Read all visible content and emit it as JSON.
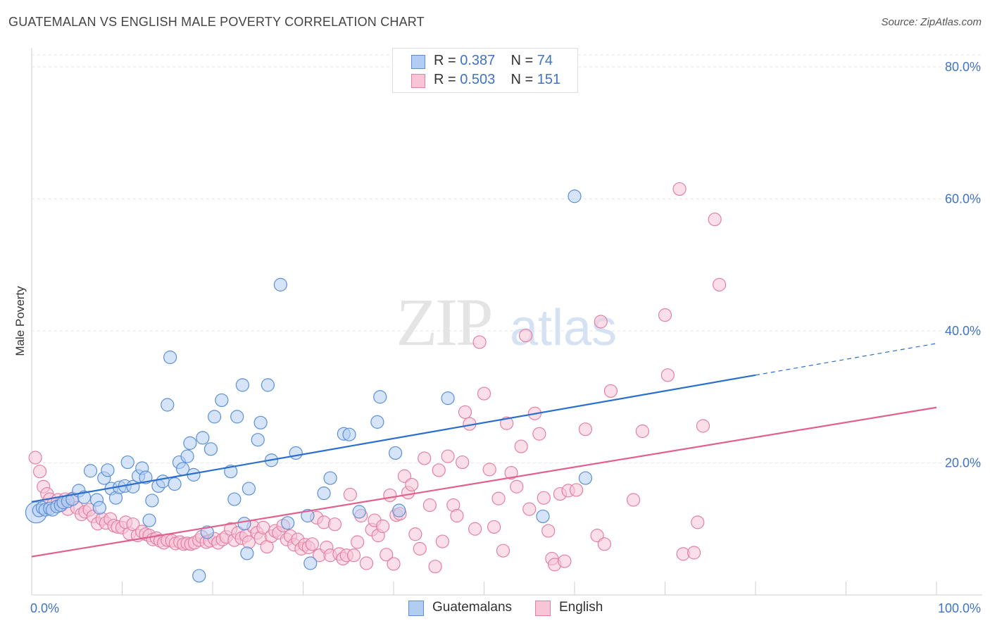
{
  "title": "GUATEMALAN VS ENGLISH MALE POVERTY CORRELATION CHART",
  "source": "Source: ZipAtlas.com",
  "watermark": {
    "zip": "ZIP",
    "atlas": "atlas"
  },
  "legend": {
    "rows": [
      {
        "r_label": "R =",
        "r_value": "0.387",
        "n_label": "N =",
        "n_value": "74"
      },
      {
        "r_label": "R =",
        "r_value": "0.503",
        "n_label": "N =",
        "n_value": "151"
      }
    ]
  },
  "bottom_legend": [
    "Guatemalans",
    "English"
  ],
  "colors": {
    "blue_fill": "#b3cdf2",
    "blue_stroke": "#5b8fd6",
    "blue_line": "#2a6fcc",
    "pink_fill": "#f8c5d6",
    "pink_stroke": "#e47fa4",
    "pink_line": "#e0608e",
    "tick": "#3f73c4",
    "grid": "#e6e6e6"
  },
  "chart_data": {
    "type": "scatter",
    "title": "GUATEMALAN VS ENGLISH MALE POVERTY CORRELATION CHART",
    "xlabel": "",
    "ylabel": "Male Poverty",
    "xlim": [
      0,
      100
    ],
    "ylim": [
      0,
      80
    ],
    "x_tick_labels": [
      "0.0%",
      "100.0%"
    ],
    "y_ticks": [
      20,
      40,
      60,
      80
    ],
    "y_tick_labels": [
      "20.0%",
      "40.0%",
      "60.0%",
      "80.0%"
    ],
    "grid": "horizontal-dashed",
    "series": [
      {
        "name": "Guatemalans",
        "R": 0.387,
        "N": 74,
        "trend": {
          "x0": 0,
          "y0": 14.1,
          "x1": 80,
          "y1": 33.3,
          "dashed_to_x": 100,
          "dashed_to_y": 38.1
        },
        "points": [
          [
            0.5,
            12.5
          ],
          [
            0.8,
            12.8
          ],
          [
            1.2,
            13.2
          ],
          [
            1.5,
            12.9
          ],
          [
            2.0,
            13.1
          ],
          [
            2.3,
            12.9
          ],
          [
            2.8,
            13.4
          ],
          [
            3.2,
            13.6
          ],
          [
            3.5,
            14.0
          ],
          [
            4.0,
            14.2
          ],
          [
            4.5,
            14.5
          ],
          [
            5.2,
            15.8
          ],
          [
            5.8,
            14.8
          ],
          [
            6.5,
            18.8
          ],
          [
            7.2,
            14.4
          ],
          [
            7.5,
            13.2
          ],
          [
            8.0,
            17.7
          ],
          [
            8.4,
            18.9
          ],
          [
            8.8,
            16.1
          ],
          [
            9.3,
            14.7
          ],
          [
            9.7,
            16.3
          ],
          [
            10.3,
            16.5
          ],
          [
            10.6,
            20.1
          ],
          [
            11.2,
            16.4
          ],
          [
            11.8,
            18.0
          ],
          [
            12.2,
            19.2
          ],
          [
            12.6,
            17.8
          ],
          [
            13.0,
            11.3
          ],
          [
            13.3,
            14.3
          ],
          [
            14.0,
            16.5
          ],
          [
            14.5,
            17.2
          ],
          [
            15.0,
            28.8
          ],
          [
            15.3,
            36.0
          ],
          [
            15.8,
            16.8
          ],
          [
            16.3,
            20.1
          ],
          [
            16.7,
            19.1
          ],
          [
            17.2,
            21.0
          ],
          [
            17.5,
            23.0
          ],
          [
            17.9,
            18.2
          ],
          [
            18.5,
            2.9
          ],
          [
            18.9,
            23.8
          ],
          [
            19.4,
            9.5
          ],
          [
            19.8,
            22.1
          ],
          [
            20.2,
            27.0
          ],
          [
            21.0,
            29.5
          ],
          [
            22.0,
            18.7
          ],
          [
            22.4,
            14.5
          ],
          [
            22.7,
            27.0
          ],
          [
            23.3,
            31.8
          ],
          [
            23.5,
            10.8
          ],
          [
            23.8,
            6.3
          ],
          [
            24.0,
            16.1
          ],
          [
            25.0,
            23.5
          ],
          [
            25.3,
            26.1
          ],
          [
            26.1,
            31.8
          ],
          [
            26.5,
            20.4
          ],
          [
            27.5,
            47.0
          ],
          [
            28.3,
            10.9
          ],
          [
            29.2,
            21.5
          ],
          [
            30.5,
            12.0
          ],
          [
            30.8,
            4.8
          ],
          [
            32.3,
            15.4
          ],
          [
            33.0,
            17.7
          ],
          [
            34.5,
            24.4
          ],
          [
            35.1,
            24.3
          ],
          [
            36.2,
            12.6
          ],
          [
            38.2,
            26.2
          ],
          [
            38.5,
            30.0
          ],
          [
            40.2,
            21.5
          ],
          [
            40.6,
            12.8
          ],
          [
            46.0,
            29.8
          ],
          [
            56.5,
            11.9
          ],
          [
            60.0,
            60.4
          ],
          [
            61.2,
            17.7
          ]
        ]
      },
      {
        "name": "English",
        "R": 0.503,
        "N": 151,
        "trend": {
          "x0": 0,
          "y0": 5.8,
          "x1": 100,
          "y1": 28.4
        },
        "points": [
          [
            0.4,
            20.8
          ],
          [
            0.9,
            18.7
          ],
          [
            1.3,
            16.4
          ],
          [
            1.7,
            15.3
          ],
          [
            2.0,
            14.5
          ],
          [
            2.4,
            13.8
          ],
          [
            2.9,
            14.4
          ],
          [
            3.3,
            13.6
          ],
          [
            3.7,
            14.5
          ],
          [
            4.0,
            13.0
          ],
          [
            4.5,
            14.6
          ],
          [
            5.0,
            13.2
          ],
          [
            5.5,
            12.2
          ],
          [
            5.9,
            12.6
          ],
          [
            6.4,
            12.9
          ],
          [
            6.8,
            11.9
          ],
          [
            7.3,
            10.8
          ],
          [
            7.8,
            11.5
          ],
          [
            8.2,
            10.9
          ],
          [
            8.7,
            11.5
          ],
          [
            9.1,
            10.5
          ],
          [
            9.5,
            10.3
          ],
          [
            10.0,
            10.2
          ],
          [
            10.4,
            11.0
          ],
          [
            10.8,
            9.3
          ],
          [
            11.2,
            10.7
          ],
          [
            11.7,
            9.0
          ],
          [
            12.2,
            9.6
          ],
          [
            12.6,
            9.2
          ],
          [
            13.0,
            9.0
          ],
          [
            13.4,
            8.4
          ],
          [
            13.8,
            8.6
          ],
          [
            14.2,
            8.2
          ],
          [
            14.6,
            7.9
          ],
          [
            15.0,
            8.3
          ],
          [
            15.5,
            8.2
          ],
          [
            15.9,
            7.8
          ],
          [
            16.4,
            8.0
          ],
          [
            16.8,
            7.7
          ],
          [
            17.2,
            7.8
          ],
          [
            17.6,
            7.7
          ],
          [
            18.0,
            7.9
          ],
          [
            18.5,
            8.3
          ],
          [
            18.8,
            8.8
          ],
          [
            19.3,
            8.0
          ],
          [
            19.7,
            8.2
          ],
          [
            20.2,
            8.5
          ],
          [
            20.6,
            7.9
          ],
          [
            21.1,
            8.4
          ],
          [
            21.5,
            8.8
          ],
          [
            22.0,
            10.0
          ],
          [
            22.4,
            8.3
          ],
          [
            22.8,
            9.4
          ],
          [
            23.2,
            8.6
          ],
          [
            23.7,
            9.0
          ],
          [
            24.0,
            8.0
          ],
          [
            24.5,
            10.3
          ],
          [
            24.9,
            9.4
          ],
          [
            25.3,
            8.6
          ],
          [
            25.6,
            10.2
          ],
          [
            26.0,
            7.3
          ],
          [
            26.5,
            8.9
          ],
          [
            26.9,
            9.7
          ],
          [
            27.3,
            9.4
          ],
          [
            27.8,
            10.5
          ],
          [
            28.2,
            8.4
          ],
          [
            28.6,
            8.9
          ],
          [
            29.0,
            7.6
          ],
          [
            29.4,
            8.4
          ],
          [
            29.8,
            7.0
          ],
          [
            30.2,
            7.6
          ],
          [
            30.6,
            7.2
          ],
          [
            31.0,
            7.7
          ],
          [
            31.5,
            11.7
          ],
          [
            31.8,
            6.0
          ],
          [
            32.3,
            11.0
          ],
          [
            32.6,
            7.2
          ],
          [
            33.0,
            6.0
          ],
          [
            33.5,
            10.7
          ],
          [
            34.0,
            6.2
          ],
          [
            34.4,
            5.5
          ],
          [
            34.8,
            6.0
          ],
          [
            35.2,
            15.2
          ],
          [
            35.6,
            6.0
          ],
          [
            36.0,
            8.0
          ],
          [
            36.4,
            12.0
          ],
          [
            37.0,
            4.8
          ],
          [
            37.6,
            9.9
          ],
          [
            37.9,
            11.3
          ],
          [
            38.3,
            9.0
          ],
          [
            38.8,
            10.4
          ],
          [
            39.2,
            6.1
          ],
          [
            39.6,
            15.1
          ],
          [
            40.0,
            4.7
          ],
          [
            40.3,
            12.1
          ],
          [
            40.7,
            12.3
          ],
          [
            41.2,
            18.0
          ],
          [
            41.6,
            15.5
          ],
          [
            42.0,
            16.7
          ],
          [
            42.4,
            9.2
          ],
          [
            42.9,
            7.0
          ],
          [
            43.4,
            20.7
          ],
          [
            44.0,
            13.6
          ],
          [
            44.6,
            4.3
          ],
          [
            45.0,
            18.9
          ],
          [
            45.4,
            8.1
          ],
          [
            46.0,
            21.0
          ],
          [
            46.6,
            13.6
          ],
          [
            47.0,
            12.0
          ],
          [
            47.6,
            20.1
          ],
          [
            47.9,
            27.7
          ],
          [
            48.4,
            25.9
          ],
          [
            49.0,
            10.0
          ],
          [
            49.5,
            38.3
          ],
          [
            50.0,
            30.5
          ],
          [
            50.6,
            19.0
          ],
          [
            51.1,
            10.3
          ],
          [
            51.6,
            14.6
          ],
          [
            52.1,
            6.7
          ],
          [
            52.5,
            26.0
          ],
          [
            53.0,
            18.5
          ],
          [
            53.6,
            16.4
          ],
          [
            54.1,
            22.5
          ],
          [
            54.6,
            39.3
          ],
          [
            55.0,
            13.0
          ],
          [
            55.6,
            27.5
          ],
          [
            56.1,
            24.4
          ],
          [
            56.6,
            14.7
          ],
          [
            57.1,
            9.7
          ],
          [
            57.5,
            5.5
          ],
          [
            57.8,
            4.6
          ],
          [
            58.4,
            15.3
          ],
          [
            58.9,
            5.1
          ],
          [
            59.3,
            15.8
          ],
          [
            60.2,
            15.9
          ],
          [
            61.2,
            25.1
          ],
          [
            62.5,
            9.0
          ],
          [
            62.9,
            41.4
          ],
          [
            63.3,
            7.7
          ],
          [
            64.0,
            30.9
          ],
          [
            66.5,
            14.4
          ],
          [
            67.5,
            24.8
          ],
          [
            70.0,
            42.4
          ],
          [
            70.3,
            33.3
          ],
          [
            71.6,
            61.5
          ],
          [
            72.0,
            6.2
          ],
          [
            73.2,
            6.4
          ],
          [
            73.6,
            11.0
          ],
          [
            74.2,
            25.6
          ],
          [
            75.5,
            56.9
          ],
          [
            76.0,
            47.0
          ]
        ]
      }
    ]
  }
}
